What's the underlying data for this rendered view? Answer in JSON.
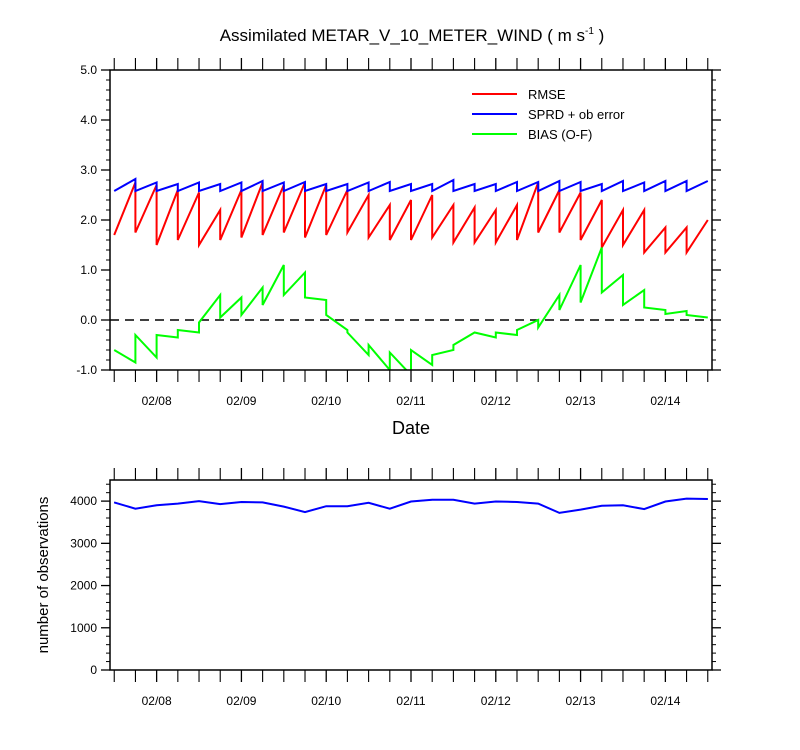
{
  "title_main": "Assimilated METAR_V_10_METER_WIND ( m s",
  "title_sup": "-1",
  "title_end": " )",
  "colors": {
    "rmse": "#ff0000",
    "sprd": "#0000ff",
    "bias": "#00ff00",
    "obs_count": "#0000ff"
  },
  "chart_data": [
    {
      "type": "line",
      "title": "Assimilated METAR_V_10_METER_WIND ( m s-1 )",
      "xlabel": "Date",
      "ylabel": "",
      "x_range": [
        -0.55,
        6.55
      ],
      "ylim": [
        -1.0,
        5.0
      ],
      "y_ticks": [
        -1.0,
        0.0,
        1.0,
        2.0,
        3.0,
        4.0,
        5.0
      ],
      "y_tick_labels": [
        "-1.0",
        "0.0",
        "1.0",
        "2.0",
        "3.0",
        "4.0",
        "5.0"
      ],
      "x_ticks": [
        0,
        1,
        2,
        3,
        4,
        5,
        6
      ],
      "x_tick_labels": [
        "02/08",
        "02/09",
        "02/10",
        "02/11",
        "02/12",
        "02/13",
        "02/14"
      ],
      "reference_line": {
        "y": 0.0,
        "style": "dashed"
      },
      "legend_placement": "top-right",
      "series": [
        {
          "name": "RMSE",
          "x": [
            -0.5,
            -0.25,
            -0.25,
            0,
            0,
            0.25,
            0.25,
            0.5,
            0.5,
            0.75,
            0.75,
            1,
            1,
            1.25,
            1.25,
            1.5,
            1.5,
            1.75,
            1.75,
            2,
            2,
            2.25,
            2.25,
            2.5,
            2.5,
            2.75,
            2.75,
            3,
            3,
            3.25,
            3.25,
            3.5,
            3.5,
            3.75,
            3.75,
            4,
            4,
            4.25,
            4.25,
            4.5,
            4.5,
            4.75,
            4.75,
            5,
            5,
            5.25,
            5.25,
            5.5,
            5.5,
            5.75,
            5.75,
            6,
            6,
            6.25,
            6.25,
            6.5
          ],
          "values": [
            1.7,
            2.75,
            1.75,
            2.7,
            1.5,
            2.6,
            1.6,
            2.55,
            1.5,
            2.2,
            1.6,
            2.6,
            1.65,
            2.75,
            1.7,
            2.7,
            1.75,
            2.75,
            1.65,
            2.7,
            1.7,
            2.6,
            1.75,
            2.5,
            1.65,
            2.3,
            1.6,
            2.4,
            1.6,
            2.5,
            1.65,
            2.3,
            1.55,
            2.25,
            1.55,
            2.2,
            1.55,
            2.3,
            1.6,
            2.75,
            1.75,
            2.6,
            1.75,
            2.55,
            1.6,
            2.4,
            1.45,
            2.2,
            1.5,
            2.2,
            1.35,
            1.85,
            1.35,
            1.85,
            1.35,
            2.0
          ]
        },
        {
          "name": "SPRD + ob error",
          "x": [
            -0.5,
            -0.25,
            -0.25,
            0,
            0,
            0.25,
            0.25,
            0.5,
            0.5,
            0.75,
            0.75,
            1,
            1,
            1.25,
            1.25,
            1.5,
            1.5,
            1.75,
            1.75,
            2,
            2,
            2.25,
            2.25,
            2.5,
            2.5,
            2.75,
            2.75,
            3,
            3,
            3.25,
            3.25,
            3.5,
            3.5,
            3.75,
            3.75,
            4,
            4,
            4.25,
            4.25,
            4.5,
            4.5,
            4.75,
            4.75,
            5,
            5,
            5.25,
            5.25,
            5.5,
            5.5,
            5.75,
            5.75,
            6,
            6,
            6.25,
            6.25,
            6.5
          ],
          "values": [
            2.58,
            2.82,
            2.58,
            2.75,
            2.58,
            2.72,
            2.58,
            2.75,
            2.58,
            2.72,
            2.58,
            2.75,
            2.58,
            2.78,
            2.58,
            2.75,
            2.58,
            2.76,
            2.58,
            2.72,
            2.58,
            2.72,
            2.58,
            2.75,
            2.58,
            2.76,
            2.58,
            2.72,
            2.58,
            2.72,
            2.58,
            2.8,
            2.58,
            2.72,
            2.58,
            2.72,
            2.58,
            2.76,
            2.58,
            2.76,
            2.58,
            2.78,
            2.58,
            2.76,
            2.58,
            2.72,
            2.58,
            2.78,
            2.58,
            2.75,
            2.58,
            2.78,
            2.58,
            2.78,
            2.58,
            2.78
          ]
        },
        {
          "name": "BIAS (O-F)",
          "x": [
            -0.5,
            -0.25,
            -0.25,
            0,
            0,
            0.25,
            0.25,
            0.5,
            0.5,
            0.75,
            0.75,
            1,
            1,
            1.25,
            1.25,
            1.5,
            1.5,
            1.75,
            1.75,
            2,
            2,
            2.25,
            2.25,
            2.5,
            2.5,
            2.75,
            2.75,
            3,
            3,
            3.25,
            3.25,
            3.5,
            3.5,
            3.75,
            3.75,
            4,
            4,
            4.25,
            4.25,
            4.5,
            4.5,
            4.75,
            4.75,
            5,
            5,
            5.25,
            5.25,
            5.5,
            5.5,
            5.75,
            5.75,
            6,
            6,
            6.25,
            6.25,
            6.5
          ],
          "values": [
            -0.6,
            -0.85,
            -0.3,
            -0.75,
            -0.3,
            -0.35,
            -0.2,
            -0.25,
            -0.05,
            0.5,
            0.05,
            0.45,
            0.1,
            0.65,
            0.3,
            1.1,
            0.5,
            0.95,
            0.45,
            0.4,
            0.1,
            -0.2,
            -0.25,
            -0.7,
            -0.5,
            -1.0,
            -0.65,
            -1.1,
            -0.6,
            -0.9,
            -0.7,
            -0.6,
            -0.5,
            -0.25,
            -0.25,
            -0.35,
            -0.25,
            -0.3,
            -0.2,
            0.0,
            -0.15,
            0.5,
            0.2,
            1.1,
            0.35,
            1.45,
            0.55,
            0.9,
            0.3,
            0.6,
            0.25,
            0.2,
            0.12,
            0.18,
            0.1,
            0.05
          ]
        }
      ]
    },
    {
      "type": "line",
      "title": "",
      "xlabel": "",
      "ylabel": "number of observations",
      "x_range": [
        -0.55,
        6.55
      ],
      "ylim": [
        0,
        4500
      ],
      "y_ticks": [
        0,
        1000,
        2000,
        3000,
        4000
      ],
      "y_tick_labels": [
        "0",
        "1000",
        "2000",
        "3000",
        "4000"
      ],
      "x_ticks": [
        0,
        1,
        2,
        3,
        4,
        5,
        6
      ],
      "x_tick_labels": [
        "02/08",
        "02/09",
        "02/10",
        "02/11",
        "02/12",
        "02/13",
        "02/14"
      ],
      "series": [
        {
          "name": "number of observations",
          "x": [
            -0.5,
            -0.25,
            0,
            0.25,
            0.5,
            0.75,
            1,
            1.25,
            1.5,
            1.75,
            2,
            2.25,
            2.5,
            2.75,
            3,
            3.25,
            3.5,
            3.75,
            4,
            4.25,
            4.5,
            4.75,
            5,
            5.25,
            5.5,
            5.75,
            6,
            6.25,
            6.5
          ],
          "values": [
            3970,
            3820,
            3900,
            3940,
            4000,
            3930,
            3980,
            3970,
            3870,
            3740,
            3880,
            3880,
            3960,
            3820,
            3990,
            4030,
            4030,
            3940,
            3990,
            3980,
            3940,
            3720,
            3800,
            3890,
            3900,
            3810,
            3990,
            4060,
            4050
          ]
        }
      ]
    }
  ]
}
